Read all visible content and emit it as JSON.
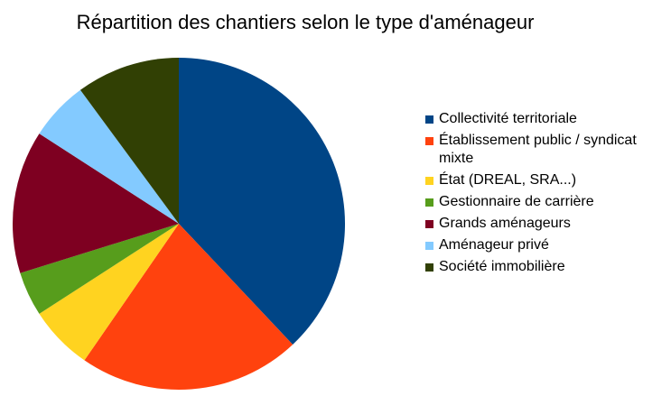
{
  "chart_data": {
    "type": "pie",
    "title": "Répartition des chantiers selon le type d'aménageur",
    "legend_position": "right",
    "slices": [
      {
        "label": "Collectivité territoriale",
        "value": 39.5,
        "color": "#004586"
      },
      {
        "label": "Établissement public / syndicat mixte",
        "value": 22.5,
        "color": "#ff420e"
      },
      {
        "label": "État (DREAL, SRA...)",
        "value": 6.5,
        "color": "#ffd320"
      },
      {
        "label": "Gestionnaire de carrière",
        "value": 4.5,
        "color": "#579d1c"
      },
      {
        "label": "Grands aménageurs",
        "value": 14.5,
        "color": "#7e0021"
      },
      {
        "label": "Aménageur privé",
        "value": 6.0,
        "color": "#83caff"
      },
      {
        "label": "Société immobilière",
        "value": 10.5,
        "color": "#314004"
      }
    ]
  }
}
